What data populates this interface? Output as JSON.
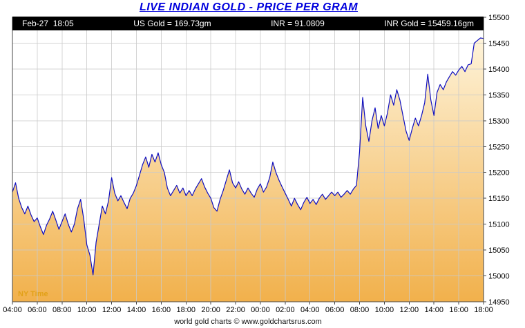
{
  "title": "LIVE INDIAN GOLD - PRICE PER GRAM",
  "header": {
    "datetime": "Feb-27  18:05",
    "us_gold": "US Gold = 169.73gm",
    "inr": "INR = 91.0809",
    "inr_gold": "INR Gold = 15459.16gm"
  },
  "footer": {
    "credit": "world gold charts © www.goldchartsrus.com"
  },
  "chart_data": {
    "type": "area",
    "title": "LIVE INDIAN GOLD - PRICE PER GRAM",
    "xlabel": "",
    "ylabel": "",
    "ny_time_label": "NY Time",
    "x_tick_labels": [
      "04:00",
      "06:00",
      "08:00",
      "10:00",
      "12:00",
      "14:00",
      "16:00",
      "18:00",
      "20:00",
      "22:00",
      "00:00",
      "02:00",
      "04:00",
      "06:00",
      "08:00",
      "10:00",
      "12:00",
      "14:00",
      "16:00",
      "18:00"
    ],
    "x_tick_interval_hours": 2,
    "series_interval_hours": 0.25,
    "values": [
      15162,
      15180,
      15150,
      15132,
      15120,
      15135,
      15118,
      15105,
      15112,
      15095,
      15080,
      15098,
      15110,
      15125,
      15108,
      15090,
      15105,
      15120,
      15100,
      15085,
      15100,
      15130,
      15148,
      15110,
      15060,
      15040,
      15002,
      15065,
      15100,
      15135,
      15120,
      15145,
      15190,
      15160,
      15145,
      15155,
      15142,
      15130,
      15150,
      15160,
      15175,
      15195,
      15215,
      15230,
      15210,
      15235,
      15220,
      15238,
      15215,
      15200,
      15170,
      15155,
      15165,
      15175,
      15160,
      15170,
      15155,
      15165,
      15155,
      15168,
      15178,
      15188,
      15172,
      15160,
      15150,
      15132,
      15125,
      15148,
      15165,
      15185,
      15205,
      15180,
      15170,
      15182,
      15168,
      15158,
      15170,
      15160,
      15152,
      15168,
      15178,
      15162,
      15172,
      15190,
      15220,
      15200,
      15185,
      15172,
      15160,
      15148,
      15135,
      15150,
      15138,
      15128,
      15142,
      15152,
      15140,
      15148,
      15138,
      15150,
      15158,
      15148,
      15155,
      15162,
      15155,
      15162,
      15152,
      15158,
      15165,
      15158,
      15168,
      15175,
      15240,
      15345,
      15290,
      15260,
      15300,
      15325,
      15285,
      15310,
      15290,
      15315,
      15350,
      15330,
      15360,
      15340,
      15310,
      15280,
      15262,
      15285,
      15305,
      15290,
      15310,
      15335,
      15390,
      15340,
      15310,
      15355,
      15370,
      15360,
      15375,
      15385,
      15395,
      15388,
      15398,
      15405,
      15395,
      15408,
      15410,
      15450,
      15455,
      15460,
      15459
    ],
    "ylim": [
      14950,
      15500
    ],
    "y_tick_interval": 50,
    "y_tick_labels": [
      "14950",
      "15000",
      "15050",
      "15100",
      "15150",
      "15200",
      "15250",
      "15300",
      "15350",
      "15400",
      "15450",
      "15500"
    ],
    "grid": true,
    "legend": "none",
    "line_color": "#0d0dc0",
    "fill_top_color": "#fff8e2",
    "fill_bottom_color": "#f0a838",
    "grid_color": "#c9c9c9",
    "frame_color": "#444444",
    "ny_time_color": "#e2a118",
    "title_color": "#0000dd",
    "header_bg": "#000000",
    "header_fg": "#ffffff"
  }
}
